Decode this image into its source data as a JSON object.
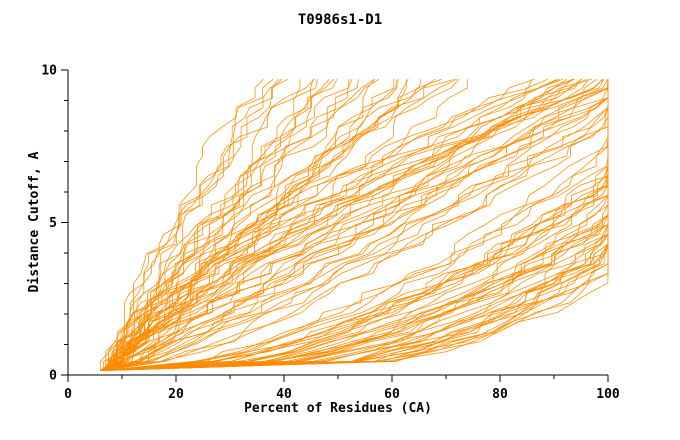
{
  "window": {
    "title": "T0986s1-D1"
  },
  "chart_data": {
    "type": "line",
    "title": "T0986s1-D1",
    "xlabel": "Percent of Residues (CA)",
    "ylabel": "Distance Cutoff, A",
    "xlim": [
      0,
      100
    ],
    "ylim": [
      0,
      10
    ],
    "x_major_ticks": [
      0,
      20,
      40,
      60,
      80,
      100
    ],
    "x_minor_step": 10,
    "y_major_ticks": [
      0,
      5,
      10
    ],
    "y_minor_step": 1,
    "grid": false,
    "legend": "none",
    "background": "#ffffff",
    "axis_color": "#000000",
    "line_color": "#ff8c00",
    "n_curves": 110,
    "y_start": 0.15,
    "y_end": 9.7,
    "series_model": "each curve: x(y) = x0 + (xmax - x0) * (y / y_end)^p, clipped at x=100; values are percent-of-residues vs distance cutoff for one predicted model",
    "curve_params_format": [
      "x0",
      "xmax",
      "p"
    ],
    "curves": [
      [
        6,
        128,
        0.3
      ],
      [
        7,
        135,
        0.35
      ],
      [
        6.5,
        122,
        0.28
      ],
      [
        7,
        130,
        0.42
      ],
      [
        6,
        118,
        0.5
      ],
      [
        7.5,
        140,
        0.32
      ],
      [
        6,
        125,
        0.38
      ],
      [
        7,
        132,
        0.45
      ],
      [
        6.5,
        115,
        0.55
      ],
      [
        7,
        138,
        0.3
      ],
      [
        6,
        120,
        0.48
      ],
      [
        7.5,
        128,
        0.36
      ],
      [
        6,
        133,
        0.52
      ],
      [
        7,
        124,
        0.27
      ],
      [
        6.5,
        136,
        0.4
      ],
      [
        7,
        116,
        0.58
      ],
      [
        6,
        129,
        0.33
      ],
      [
        7.5,
        121,
        0.5
      ],
      [
        6,
        137,
        0.44
      ],
      [
        7,
        126,
        0.31
      ],
      [
        6.5,
        119,
        0.6
      ],
      [
        7,
        134,
        0.37
      ],
      [
        6,
        123,
        0.54
      ],
      [
        7.5,
        131,
        0.29
      ],
      [
        6,
        117,
        0.47
      ],
      [
        7,
        139,
        0.41
      ],
      [
        6.5,
        127,
        0.57
      ],
      [
        7,
        120,
        0.34
      ],
      [
        6,
        135,
        0.49
      ],
      [
        7.5,
        125,
        0.26
      ],
      [
        6,
        130,
        0.43
      ],
      [
        7,
        114,
        0.6
      ],
      [
        6.5,
        138,
        0.35
      ],
      [
        7,
        122,
        0.53
      ],
      [
        6,
        126,
        0.3
      ],
      [
        7.5,
        133,
        0.46
      ],
      [
        6,
        118,
        0.39
      ],
      [
        7,
        129,
        0.56
      ],
      [
        6.5,
        124,
        0.32
      ],
      [
        7,
        136,
        0.5
      ],
      [
        6,
        121,
        0.44
      ],
      [
        7.5,
        127,
        0.28
      ],
      [
        6,
        132,
        0.58
      ],
      [
        7,
        119,
        0.36
      ],
      [
        6.5,
        125,
        0.42
      ],
      [
        7,
        100,
        0.8
      ],
      [
        6,
        108,
        1.0
      ],
      [
        7.5,
        95,
        1.2
      ],
      [
        6.5,
        112,
        0.9
      ],
      [
        7,
        90,
        1.4
      ],
      [
        6,
        105,
        0.75
      ],
      [
        7.5,
        98,
        1.1
      ],
      [
        6.5,
        110,
        1.3
      ],
      [
        7,
        88,
        0.95
      ],
      [
        6,
        102,
        1.5
      ],
      [
        7.5,
        93,
        0.85
      ],
      [
        6.5,
        107,
        1.15
      ],
      [
        7,
        99,
        1.35
      ],
      [
        6,
        111,
        0.7
      ],
      [
        7.5,
        91,
        1.25
      ],
      [
        6.5,
        104,
        1.05
      ],
      [
        7,
        96,
        1.45
      ],
      [
        6,
        109,
        0.8
      ],
      [
        7.5,
        87,
        1.6
      ],
      [
        6.5,
        101,
        0.9
      ],
      [
        7,
        94,
        1.2
      ],
      [
        6,
        106,
        1.0
      ],
      [
        7.5,
        97,
        1.4
      ],
      [
        6.5,
        113,
        0.78
      ],
      [
        7,
        89,
        1.55
      ],
      [
        6,
        103,
        1.1
      ],
      [
        7.5,
        92,
        0.88
      ],
      [
        6.5,
        100,
        1.3
      ],
      [
        7,
        110,
        0.72
      ],
      [
        6,
        95,
        1.5
      ],
      [
        7.5,
        105,
        0.95
      ],
      [
        6.5,
        98,
        1.18
      ],
      [
        7,
        86,
        1.42
      ],
      [
        6,
        108,
        0.82
      ],
      [
        7.5,
        96,
        1.28
      ],
      [
        7,
        36,
        1.0
      ],
      [
        8,
        42,
        0.9
      ],
      [
        7.5,
        38,
        1.2
      ],
      [
        8,
        50,
        1.1
      ],
      [
        7,
        45,
        0.85
      ],
      [
        8,
        55,
        1.3
      ],
      [
        7.5,
        40,
        1.5
      ],
      [
        8,
        60,
        0.95
      ],
      [
        7,
        48,
        1.15
      ],
      [
        8,
        65,
        1.05
      ],
      [
        7.5,
        52,
        1.4
      ],
      [
        8,
        70,
        0.9
      ],
      [
        7,
        58,
        1.25
      ],
      [
        8,
        44,
        1.6
      ],
      [
        7.5,
        62,
        1.0
      ],
      [
        8,
        68,
        1.2
      ],
      [
        7,
        74,
        0.88
      ],
      [
        8,
        56,
        1.35
      ],
      [
        7.5,
        47,
        1.1
      ],
      [
        8,
        72,
        1.45
      ],
      [
        7,
        64,
        0.92
      ],
      [
        8,
        39,
        1.3
      ],
      [
        7.5,
        66,
        1.15
      ],
      [
        8,
        53,
        0.98
      ],
      [
        7,
        70,
        1.5
      ],
      [
        8,
        61,
        1.08
      ],
      [
        7.5,
        35,
        1.42
      ],
      [
        8,
        58,
        0.8
      ],
      [
        7,
        49,
        1.28
      ],
      [
        8,
        67,
        1.18
      ]
    ]
  }
}
